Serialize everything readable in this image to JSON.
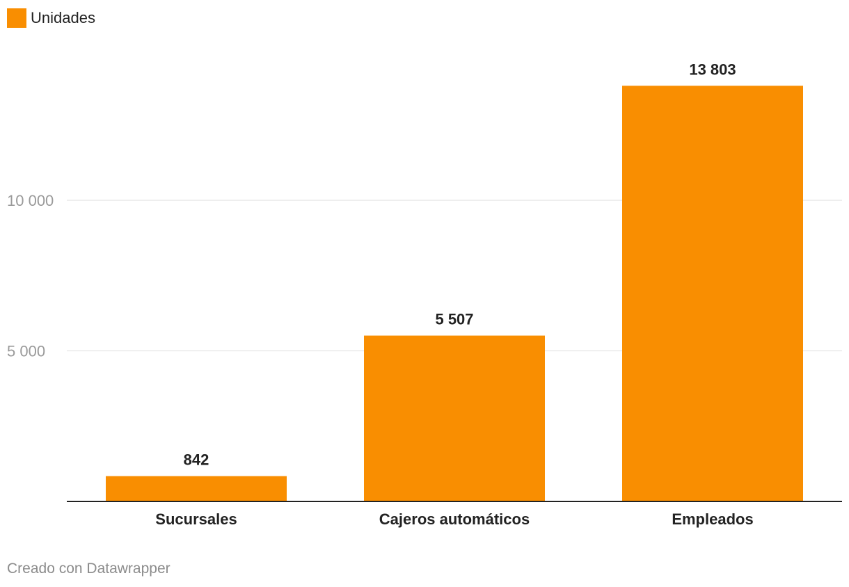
{
  "legend": {
    "label": "Unidades",
    "color": "#f98e01"
  },
  "footer": {
    "credit": "Creado con Datawrapper"
  },
  "chart_data": {
    "type": "bar",
    "categories": [
      "Sucursales",
      "Cajeros automáticos",
      "Empleados"
    ],
    "series": [
      {
        "name": "Unidades",
        "values": [
          842,
          5507,
          13803
        ],
        "value_labels": [
          "842",
          "5 507",
          "13 803"
        ],
        "color": "#f98e01"
      }
    ],
    "yticks": [
      5000,
      10000
    ],
    "ytick_labels": [
      "5 000",
      "10 000"
    ],
    "ylim": [
      0,
      15000
    ],
    "grid": true,
    "legend_position": "top-left"
  }
}
